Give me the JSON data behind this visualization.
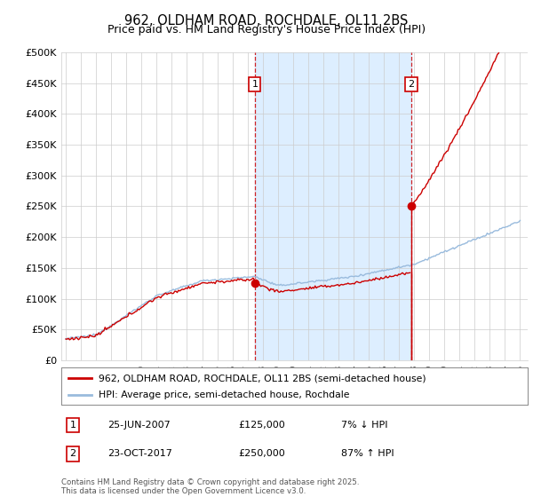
{
  "title": "962, OLDHAM ROAD, ROCHDALE, OL11 2BS",
  "subtitle": "Price paid vs. HM Land Registry's House Price Index (HPI)",
  "ylabel_ticks": [
    "£0",
    "£50K",
    "£100K",
    "£150K",
    "£200K",
    "£250K",
    "£300K",
    "£350K",
    "£400K",
    "£450K",
    "£500K"
  ],
  "ytick_values": [
    0,
    50000,
    100000,
    150000,
    200000,
    250000,
    300000,
    350000,
    400000,
    450000,
    500000
  ],
  "ymax": 500000,
  "sale1_x": 2007.48,
  "sale1_price": 125000,
  "sale2_x": 2017.81,
  "sale2_price": 250000,
  "red_line_color": "#cc0000",
  "blue_line_color": "#99bbdd",
  "shade_color": "#ddeeff",
  "dashed_line_color": "#cc0000",
  "legend_label_red": "962, OLDHAM ROAD, ROCHDALE, OL11 2BS (semi-detached house)",
  "legend_label_blue": "HPI: Average price, semi-detached house, Rochdale",
  "footer": "Contains HM Land Registry data © Crown copyright and database right 2025.\nThis data is licensed under the Open Government Licence v3.0.",
  "table_rows": [
    {
      "num": "1",
      "date": "25-JUN-2007",
      "price": "£125,000",
      "pct": "7% ↓ HPI"
    },
    {
      "num": "2",
      "date": "23-OCT-2017",
      "price": "£250,000",
      "pct": "87% ↑ HPI"
    }
  ]
}
